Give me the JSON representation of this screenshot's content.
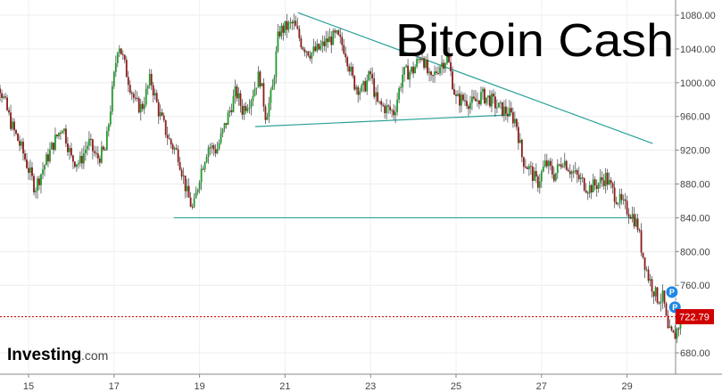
{
  "chart_data": {
    "type": "candlestick",
    "title": "Bitcoin Cash",
    "brand": {
      "name": "Investing",
      "suffix": ".com"
    },
    "x_ticks": [
      "15",
      "17",
      "19",
      "21",
      "23",
      "25",
      "27",
      "29"
    ],
    "y_ticks": [
      680,
      720,
      760,
      800,
      840,
      880,
      920,
      960,
      1000,
      1040,
      1080
    ],
    "ylim": [
      660,
      1100
    ],
    "xlim": [
      14.0,
      30.6
    ],
    "last_price": 722.79,
    "last_price_label": "722.79",
    "markers": [
      {
        "label": "P",
        "x": 30.05,
        "y": 752
      },
      {
        "label": "P",
        "x": 30.12,
        "y": 734
      }
    ],
    "trendlines": [
      {
        "x": [
          21.3,
          29.6
        ],
        "y": [
          1083,
          928
        ]
      },
      {
        "x": [
          20.3,
          26.3
        ],
        "y": [
          948,
          962
        ]
      },
      {
        "x": [
          18.4,
          29.2
        ],
        "y": [
          840,
          840
        ]
      }
    ],
    "price_path": [
      [
        14.0,
        1040
      ],
      [
        14.3,
        1000
      ],
      [
        14.6,
        950
      ],
      [
        14.85,
        920
      ],
      [
        15.15,
        875
      ],
      [
        15.35,
        900
      ],
      [
        15.6,
        930
      ],
      [
        15.8,
        950
      ],
      [
        16.0,
        910
      ],
      [
        16.2,
        905
      ],
      [
        16.4,
        930
      ],
      [
        16.6,
        910
      ],
      [
        16.8,
        920
      ],
      [
        16.95,
        985
      ],
      [
        17.1,
        1050
      ],
      [
        17.3,
        1010
      ],
      [
        17.5,
        975
      ],
      [
        17.65,
        970
      ],
      [
        17.85,
        1005
      ],
      [
        18.05,
        965
      ],
      [
        18.3,
        930
      ],
      [
        18.5,
        915
      ],
      [
        18.7,
        870
      ],
      [
        18.85,
        848
      ],
      [
        19.0,
        890
      ],
      [
        19.2,
        925
      ],
      [
        19.4,
        920
      ],
      [
        19.6,
        950
      ],
      [
        19.85,
        990
      ],
      [
        20.0,
        968
      ],
      [
        20.2,
        982
      ],
      [
        20.4,
        1010
      ],
      [
        20.55,
        960
      ],
      [
        20.7,
        990
      ],
      [
        20.85,
        1060
      ],
      [
        21.0,
        1065
      ],
      [
        21.2,
        1070
      ],
      [
        21.4,
        1045
      ],
      [
        21.6,
        1035
      ],
      [
        21.8,
        1040
      ],
      [
        22.0,
        1050
      ],
      [
        22.2,
        1055
      ],
      [
        22.4,
        1040
      ],
      [
        22.6,
        1000
      ],
      [
        22.8,
        990
      ],
      [
        23.0,
        1010
      ],
      [
        23.15,
        975
      ],
      [
        23.35,
        970
      ],
      [
        23.55,
        965
      ],
      [
        23.75,
        1010
      ],
      [
        24.0,
        1015
      ],
      [
        24.2,
        1035
      ],
      [
        24.4,
        1000
      ],
      [
        24.6,
        1020
      ],
      [
        24.8,
        1030
      ],
      [
        25.0,
        980
      ],
      [
        25.2,
        980
      ],
      [
        25.4,
        975
      ],
      [
        25.6,
        985
      ],
      [
        25.8,
        980
      ],
      [
        26.0,
        970
      ],
      [
        26.2,
        965
      ],
      [
        26.4,
        955
      ],
      [
        26.55,
        910
      ],
      [
        26.75,
        895
      ],
      [
        26.9,
        880
      ],
      [
        27.1,
        905
      ],
      [
        27.3,
        890
      ],
      [
        27.5,
        910
      ],
      [
        27.7,
        895
      ],
      [
        27.9,
        885
      ],
      [
        28.1,
        875
      ],
      [
        28.3,
        880
      ],
      [
        28.5,
        888
      ],
      [
        28.7,
        868
      ],
      [
        28.9,
        855
      ],
      [
        29.1,
        845
      ],
      [
        29.25,
        830
      ],
      [
        29.35,
        800
      ],
      [
        29.5,
        770
      ],
      [
        29.7,
        745
      ],
      [
        29.85,
        745
      ],
      [
        29.95,
        705
      ],
      [
        30.1,
        698
      ],
      [
        30.2,
        712
      ],
      [
        30.3,
        722.79
      ]
    ]
  }
}
